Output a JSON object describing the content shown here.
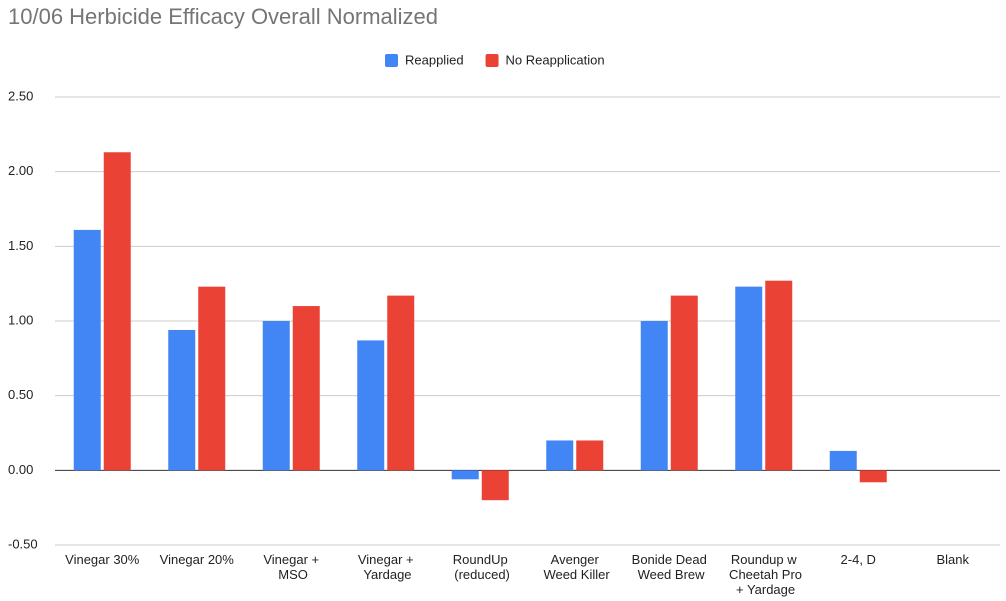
{
  "chart_data": {
    "type": "bar",
    "title": "10/06 Herbicide Efficacy Overall Normalized",
    "categories": [
      "Vinegar 30%",
      "Vinegar 20%",
      "Vinegar + MSO",
      "Vinegar + Yardage",
      "RoundUp (reduced)",
      "Avenger Weed Killer",
      "Bonide Dead Weed Brew",
      "Roundup w Cheetah Pro + Yardage",
      "2-4, D",
      "Blank"
    ],
    "series": [
      {
        "name": "Reapplied",
        "color": "#4285f4",
        "values": [
          1.61,
          0.94,
          1.0,
          0.87,
          -0.06,
          0.2,
          1.0,
          1.23,
          0.13,
          0
        ]
      },
      {
        "name": "No Reapplication",
        "color": "#ea4335",
        "values": [
          2.13,
          1.23,
          1.1,
          1.17,
          -0.2,
          0.2,
          1.17,
          1.27,
          -0.08,
          0
        ]
      }
    ],
    "ylim": [
      -0.5,
      2.5
    ],
    "yticks": [
      {
        "value": -0.5,
        "label": "-0.50"
      },
      {
        "value": 0,
        "label": "0.00"
      },
      {
        "value": 0.5,
        "label": "0.50"
      },
      {
        "value": 1,
        "label": "1.00"
      },
      {
        "value": 1.5,
        "label": "1.50"
      },
      {
        "value": 2,
        "label": "2.00"
      },
      {
        "value": 2.5,
        "label": "2.50"
      }
    ],
    "grid": true,
    "legend": "top"
  }
}
